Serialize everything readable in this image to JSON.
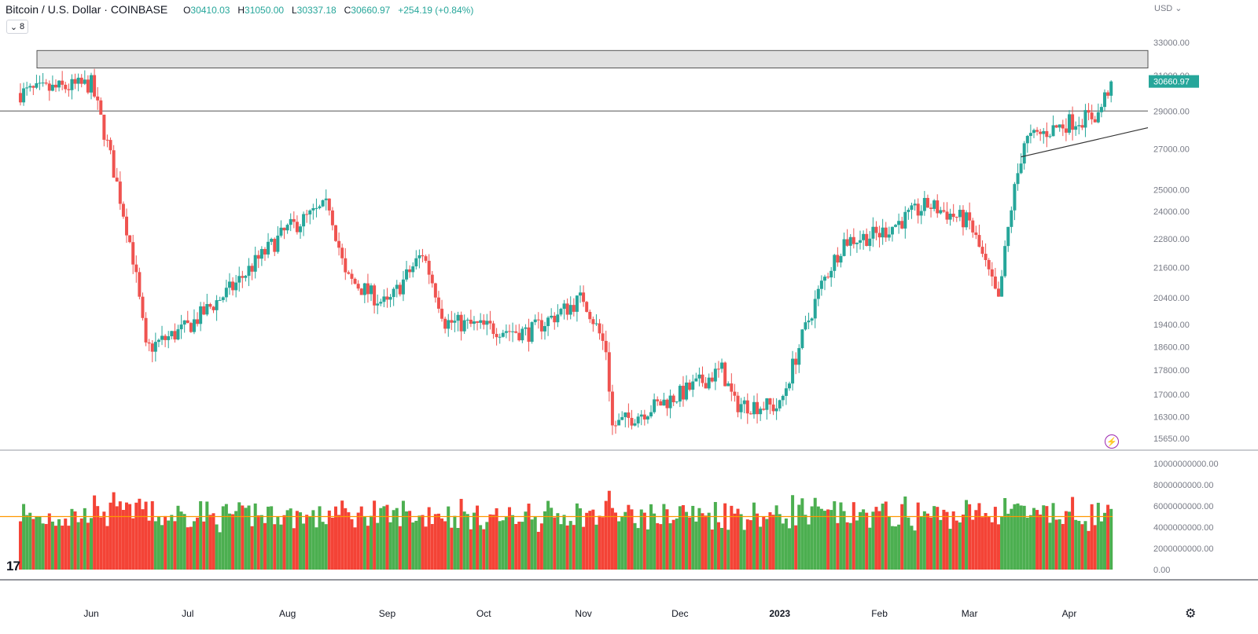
{
  "header": {
    "symbol": "Bitcoin / U.S. Dollar · COINBASE",
    "open_label": "O",
    "open": "30410.03",
    "high_label": "H",
    "high": "31050.00",
    "low_label": "L",
    "low": "30337.18",
    "close_label": "C",
    "close": "30660.97",
    "change": "+254.19 (+0.84%)",
    "indicator_count": "8"
  },
  "currency": "USD",
  "last_price_label": "30660.97",
  "logo_text": "17",
  "colors": {
    "up": "#26a69a",
    "down": "#ef5350",
    "vol_up": "#4caf50",
    "vol_down": "#f44336",
    "ma": "#ff9800",
    "zone": "#e0e0e0",
    "price_tag": "#26a69a"
  },
  "chart_data": {
    "type": "candlestick",
    "price_axis_ticks": [
      "33000.00",
      "31000.00",
      "29000.00",
      "27000.00",
      "25000.00",
      "24000.00",
      "22800.00",
      "21600.00",
      "20400.00",
      "19400.00",
      "18600.00",
      "17800.00",
      "17000.00",
      "16300.00",
      "15650.00"
    ],
    "volume_axis_ticks": [
      "10000000000.00",
      "8000000000.00",
      "6000000000.00",
      "4000000000.00",
      "2000000000.00",
      "0.00"
    ],
    "x_axis_ticks": [
      "Jun",
      "Jul",
      "Aug",
      "Sep",
      "Oct",
      "Nov",
      "Dec",
      "2023",
      "Feb",
      "Mar",
      "Apr"
    ],
    "resistance_zone": [
      31450,
      32500
    ],
    "horizontal_line": 29000,
    "trendline": [
      {
        "date": "2023-03-17",
        "price": 26600
      },
      {
        "date": "2023-04-14",
        "price": 28100
      }
    ],
    "ohlc_monthly_anchors": [
      {
        "date": "2022-05-10",
        "close": 30000
      },
      {
        "date": "2022-06-01",
        "close": 30500
      },
      {
        "date": "2022-06-14",
        "close": 22000
      },
      {
        "date": "2022-06-18",
        "close": 18500
      },
      {
        "date": "2022-07-01",
        "close": 19300
      },
      {
        "date": "2022-07-15",
        "close": 20800
      },
      {
        "date": "2022-08-01",
        "close": 23200
      },
      {
        "date": "2022-08-14",
        "close": 24300
      },
      {
        "date": "2022-08-19",
        "close": 21200
      },
      {
        "date": "2022-09-01",
        "close": 20100
      },
      {
        "date": "2022-09-12",
        "close": 22200
      },
      {
        "date": "2022-09-19",
        "close": 19500
      },
      {
        "date": "2022-10-01",
        "close": 19300
      },
      {
        "date": "2022-10-15",
        "close": 19100
      },
      {
        "date": "2022-11-01",
        "close": 20400
      },
      {
        "date": "2022-11-08",
        "close": 18500
      },
      {
        "date": "2022-11-10",
        "close": 16000
      },
      {
        "date": "2022-12-01",
        "close": 17000
      },
      {
        "date": "2022-12-14",
        "close": 17800
      },
      {
        "date": "2022-12-18",
        "close": 16700
      },
      {
        "date": "2023-01-01",
        "close": 16600
      },
      {
        "date": "2023-01-14",
        "close": 20900
      },
      {
        "date": "2023-01-21",
        "close": 22700
      },
      {
        "date": "2023-02-01",
        "close": 23000
      },
      {
        "date": "2023-02-16",
        "close": 24300
      },
      {
        "date": "2023-03-01",
        "close": 23500
      },
      {
        "date": "2023-03-10",
        "close": 20200
      },
      {
        "date": "2023-03-14",
        "close": 24200
      },
      {
        "date": "2023-03-18",
        "close": 27400
      },
      {
        "date": "2023-04-01",
        "close": 28400
      },
      {
        "date": "2023-04-10",
        "close": 28800
      },
      {
        "date": "2023-04-14",
        "close": 30660.97
      }
    ],
    "volume_ma_level": 5000000000
  }
}
